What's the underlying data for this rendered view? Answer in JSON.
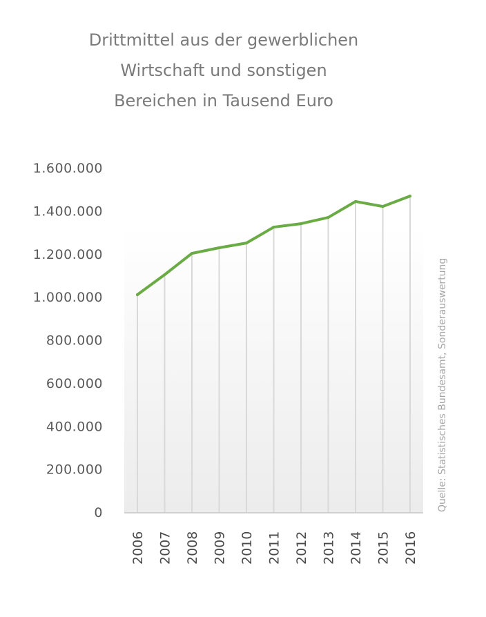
{
  "chart_data": {
    "type": "line",
    "title": "Drittmittel aus der gewerblichen Wirtschaft und sonstigen Bereichen in Tausend Euro",
    "title_lines": [
      "Drittmittel aus der gewerblichen",
      "Wirtschaft und sonstigen",
      "Bereichen in Tausend Euro"
    ],
    "xlabel": "",
    "ylabel": "",
    "categories": [
      "2006",
      "2007",
      "2008",
      "2009",
      "2010",
      "2011",
      "2012",
      "2013",
      "2014",
      "2015",
      "2016"
    ],
    "series": [
      {
        "name": "Drittmittel",
        "color": "#6aab45",
        "values": [
          1010000,
          1103000,
          1202000,
          1228000,
          1250000,
          1324000,
          1340000,
          1369000,
          1443000,
          1420000,
          1468000
        ]
      }
    ],
    "ylim": [
      0,
      1600000
    ],
    "yticks": [
      0,
      200000,
      400000,
      600000,
      800000,
      1000000,
      1200000,
      1400000,
      1600000
    ],
    "ytick_labels": [
      "0",
      "200.000",
      "400.000",
      "600.000",
      "800.000",
      "1.000.000",
      "1.200.000",
      "1.400.000",
      "1.600.000"
    ],
    "grid": "vertical lines at each category",
    "legend": "none",
    "source_note": "Quelle: Statistisches Bundesamt, Sonderauswertung",
    "colors": {
      "line": "#6aab45",
      "title": "#7a7a7a",
      "axis_text": "#5a5a5a",
      "grid": "#d9d9d9",
      "source": "#a6a6a6"
    }
  }
}
